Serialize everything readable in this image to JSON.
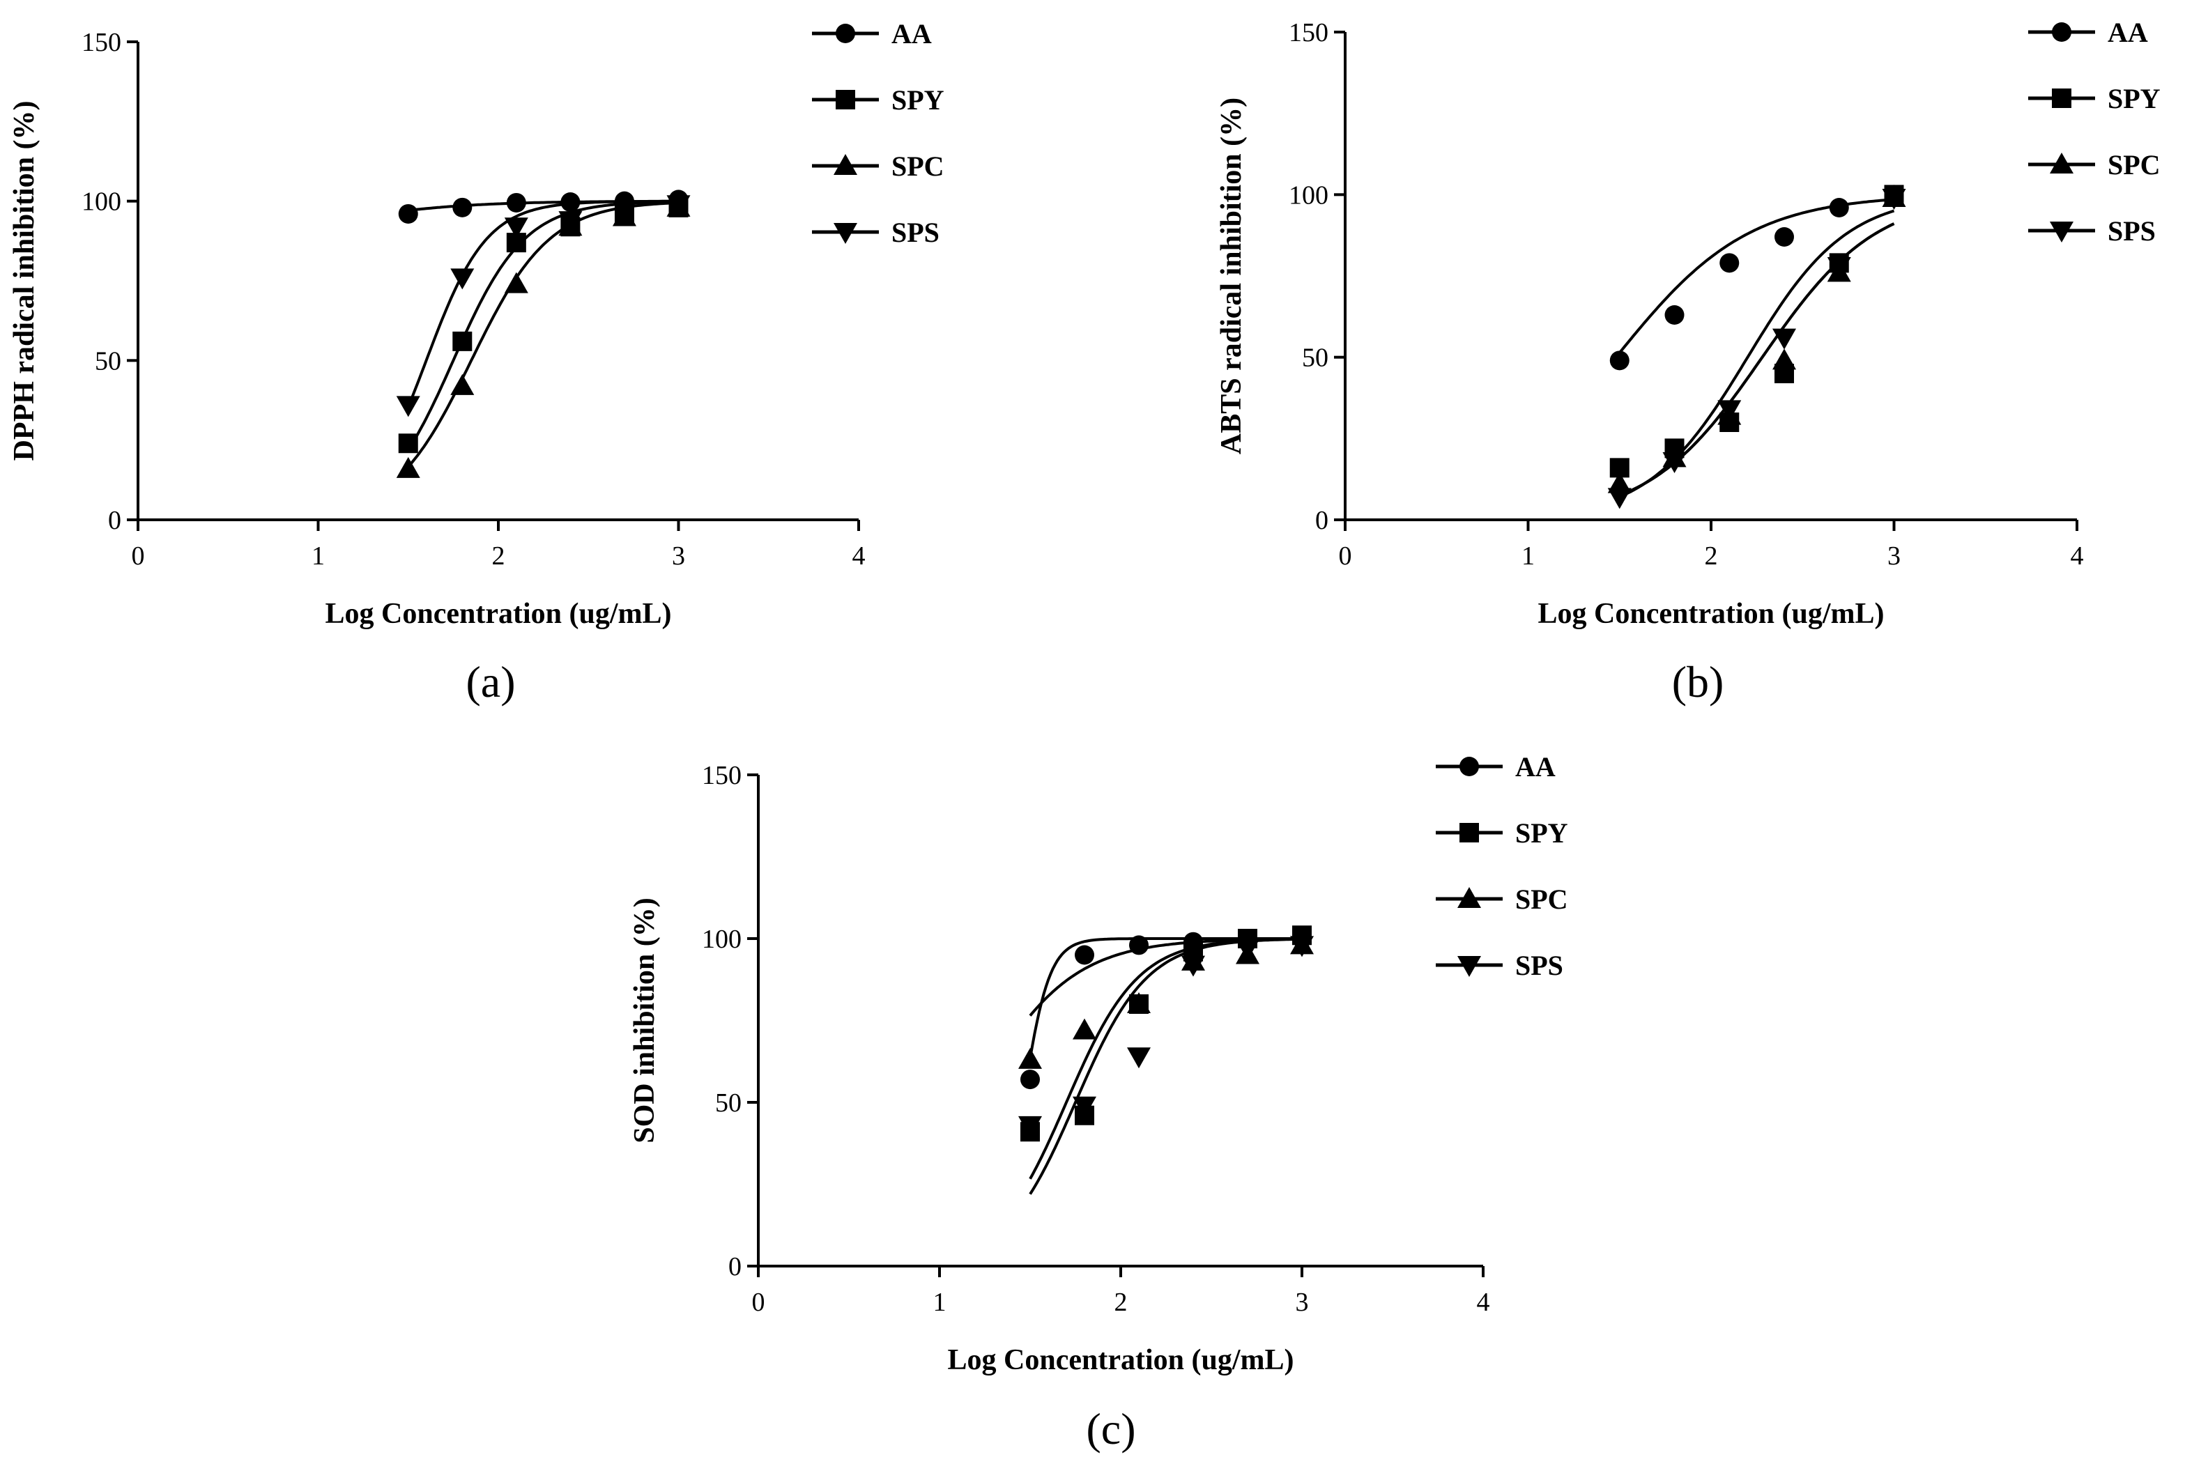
{
  "figure": {
    "panel_labels": [
      "(a)",
      "(b)",
      "(c)"
    ]
  },
  "chart_data": [
    {
      "type": "scatter",
      "panel": "(a)",
      "title": "",
      "xlabel": "Log Concentration (ug/mL)",
      "ylabel": "DPPH radical inhibition (%)",
      "xlim": [
        0,
        4
      ],
      "ylim": [
        0,
        150
      ],
      "xticks": [
        0,
        1,
        2,
        3,
        4
      ],
      "yticks": [
        0,
        50,
        100,
        150
      ],
      "grid": false,
      "legend_position": "right",
      "x": [
        1.5,
        1.8,
        2.1,
        2.4,
        2.7,
        3.0
      ],
      "series": [
        {
          "name": "AA",
          "marker": "circle",
          "values": [
            96,
            98,
            99.5,
            99.7,
            100,
            100.5
          ],
          "fit": {
            "bottom": 90,
            "top": 100,
            "logec50": 1.2,
            "hill": 1.3
          }
        },
        {
          "name": "SPY",
          "marker": "square",
          "values": [
            24,
            56,
            87,
            92,
            96,
            98
          ],
          "fit": {
            "bottom": 0,
            "top": 100,
            "logec50": 1.75,
            "hill": 2.2
          }
        },
        {
          "name": "SPC",
          "marker": "triangle-up",
          "values": [
            16,
            42,
            74,
            92,
            95,
            98
          ],
          "fit": {
            "bottom": 0,
            "top": 100,
            "logec50": 1.85,
            "hill": 2.0
          }
        },
        {
          "name": "SPS",
          "marker": "triangle-down",
          "values": [
            36,
            76,
            92,
            94,
            97,
            99
          ],
          "fit": {
            "bottom": 0,
            "top": 100,
            "logec50": 1.6,
            "hill": 2.6
          }
        }
      ]
    },
    {
      "type": "scatter",
      "panel": "(b)",
      "title": "",
      "xlabel": "Log Concentration (ug/mL)",
      "ylabel": "ABTS radical inhibition (%)",
      "xlim": [
        0,
        4
      ],
      "ylim": [
        0,
        150
      ],
      "xticks": [
        0,
        1,
        2,
        3,
        4
      ],
      "yticks": [
        0,
        50,
        100,
        150
      ],
      "grid": false,
      "legend_position": "right",
      "x": [
        1.5,
        1.8,
        2.1,
        2.4,
        2.7,
        3.0
      ],
      "series": [
        {
          "name": "AA",
          "marker": "circle",
          "values": [
            49,
            63,
            79,
            87,
            96,
            100
          ],
          "fit": {
            "bottom": 0,
            "top": 100,
            "logec50": 1.48,
            "hill": 1.2
          }
        },
        {
          "name": "SPY",
          "marker": "square",
          "values": [
            16,
            22,
            30,
            45,
            79,
            100
          ],
          "fit": {
            "bottom": 0,
            "top": 100,
            "logec50": 2.28,
            "hill": 1.4
          }
        },
        {
          "name": "SPC",
          "marker": "triangle-up",
          "values": [
            11,
            19,
            32,
            49,
            76,
            99
          ],
          "fit": {
            "bottom": 0,
            "top": 100,
            "logec50": 2.28,
            "hill": 1.4
          }
        },
        {
          "name": "SPS",
          "marker": "triangle-down",
          "values": [
            7,
            18,
            34,
            56,
            78,
            99
          ],
          "fit": {
            "bottom": 0,
            "top": 100,
            "logec50": 2.2,
            "hill": 1.6
          }
        }
      ]
    },
    {
      "type": "scatter",
      "panel": "(c)",
      "title": "",
      "xlabel": "Log Concentration (ug/mL)",
      "ylabel": "SOD inhibition (%)",
      "xlim": [
        0,
        4
      ],
      "ylim": [
        0,
        150
      ],
      "xticks": [
        0,
        1,
        2,
        3,
        4
      ],
      "yticks": [
        0,
        50,
        100,
        150
      ],
      "grid": false,
      "legend_position": "right",
      "x": [
        1.5,
        1.8,
        2.1,
        2.4,
        2.7,
        3.0
      ],
      "series": [
        {
          "name": "AA",
          "marker": "circle",
          "values": [
            57,
            95,
            98,
            99,
            100,
            100
          ],
          "fit": {
            "bottom": 0,
            "top": 100,
            "logec50": 1.46,
            "hill": 6.0
          }
        },
        {
          "name": "SPY",
          "marker": "square",
          "values": [
            41,
            46,
            80,
            96,
            100,
            101
          ],
          "fit": {
            "bottom": 0,
            "top": 100,
            "logec50": 1.7,
            "hill": 2.2
          }
        },
        {
          "name": "SPC",
          "marker": "triangle-up",
          "values": [
            63,
            72,
            80,
            93,
            95,
            98
          ],
          "fit": {
            "bottom": 0,
            "top": 100,
            "logec50": 1.18,
            "hill": 1.6
          }
        },
        {
          "name": "SPS",
          "marker": "triangle-down",
          "values": [
            43,
            49,
            64,
            92,
            97,
            98
          ],
          "fit": {
            "bottom": 0,
            "top": 100,
            "logec50": 1.75,
            "hill": 2.2
          }
        }
      ]
    }
  ]
}
